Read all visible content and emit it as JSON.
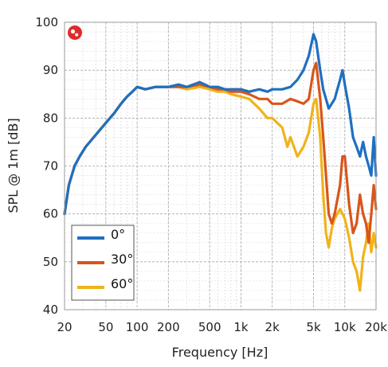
{
  "chart_data": {
    "type": "line",
    "title": "",
    "xlabel": "Frequency [Hz]",
    "ylabel": "SPL @ 1m [dB]",
    "x_scale": "log",
    "xlim": [
      20,
      20000
    ],
    "ylim": [
      40,
      100
    ],
    "x_ticks": [
      20,
      50,
      100,
      200,
      500,
      1000,
      2000,
      5000,
      10000,
      20000
    ],
    "x_tick_labels": [
      "20",
      "50",
      "100",
      "200",
      "500",
      "1k",
      "2k",
      "5k",
      "10k",
      "20k"
    ],
    "y_ticks": [
      40,
      50,
      60,
      70,
      80,
      90,
      100
    ],
    "y_tick_labels": [
      "40",
      "50",
      "60",
      "70",
      "80",
      "90",
      "100"
    ],
    "grid": true,
    "legend_position": "bottom-left",
    "series": [
      {
        "name": "0°",
        "color": "#1f6fc0",
        "points": [
          [
            20,
            60
          ],
          [
            22,
            66
          ],
          [
            25,
            70
          ],
          [
            28,
            72
          ],
          [
            32,
            74
          ],
          [
            40,
            76.5
          ],
          [
            50,
            79
          ],
          [
            60,
            81
          ],
          [
            70,
            83
          ],
          [
            80,
            84.5
          ],
          [
            90,
            85.5
          ],
          [
            100,
            86.5
          ],
          [
            120,
            86
          ],
          [
            150,
            86.5
          ],
          [
            200,
            86.5
          ],
          [
            250,
            87
          ],
          [
            300,
            86.5
          ],
          [
            400,
            87.5
          ],
          [
            450,
            87
          ],
          [
            500,
            86.5
          ],
          [
            600,
            86.5
          ],
          [
            700,
            86
          ],
          [
            800,
            86
          ],
          [
            1000,
            86
          ],
          [
            1200,
            85.5
          ],
          [
            1500,
            86
          ],
          [
            1800,
            85.5
          ],
          [
            2000,
            86
          ],
          [
            2500,
            86
          ],
          [
            3000,
            86.5
          ],
          [
            3500,
            88
          ],
          [
            4000,
            90
          ],
          [
            4500,
            93
          ],
          [
            5000,
            97.5
          ],
          [
            5300,
            96
          ],
          [
            5800,
            90
          ],
          [
            6200,
            86
          ],
          [
            7000,
            82
          ],
          [
            8000,
            84
          ],
          [
            9000,
            88
          ],
          [
            9500,
            90
          ],
          [
            10000,
            87
          ],
          [
            11000,
            82
          ],
          [
            12000,
            76
          ],
          [
            13000,
            74
          ],
          [
            14000,
            72
          ],
          [
            15000,
            75
          ],
          [
            16000,
            72
          ],
          [
            17000,
            70
          ],
          [
            18000,
            68
          ],
          [
            19000,
            76
          ],
          [
            20000,
            68
          ]
        ]
      },
      {
        "name": "30°",
        "color": "#d8561a",
        "points": [
          [
            20,
            60
          ],
          [
            22,
            66
          ],
          [
            25,
            70
          ],
          [
            28,
            72
          ],
          [
            32,
            74
          ],
          [
            40,
            76.5
          ],
          [
            50,
            79
          ],
          [
            60,
            81
          ],
          [
            70,
            83
          ],
          [
            80,
            84.5
          ],
          [
            90,
            85.5
          ],
          [
            100,
            86.5
          ],
          [
            120,
            86
          ],
          [
            150,
            86.5
          ],
          [
            200,
            86.5
          ],
          [
            250,
            86.5
          ],
          [
            300,
            86.5
          ],
          [
            400,
            87
          ],
          [
            500,
            86.5
          ],
          [
            600,
            86
          ],
          [
            700,
            86
          ],
          [
            800,
            85.5
          ],
          [
            1000,
            85.5
          ],
          [
            1200,
            85
          ],
          [
            1500,
            84
          ],
          [
            1800,
            84
          ],
          [
            2000,
            83
          ],
          [
            2500,
            83
          ],
          [
            3000,
            84
          ],
          [
            3500,
            83.5
          ],
          [
            4000,
            83
          ],
          [
            4500,
            84
          ],
          [
            5000,
            90
          ],
          [
            5300,
            91.5
          ],
          [
            5800,
            84
          ],
          [
            6200,
            76
          ],
          [
            6600,
            68
          ],
          [
            7000,
            60
          ],
          [
            7500,
            58
          ],
          [
            8000,
            60
          ],
          [
            9000,
            66
          ],
          [
            9500,
            72
          ],
          [
            10000,
            72
          ],
          [
            11000,
            62
          ],
          [
            12000,
            56
          ],
          [
            13000,
            58
          ],
          [
            14000,
            64
          ],
          [
            15000,
            60
          ],
          [
            16000,
            58
          ],
          [
            17000,
            54
          ],
          [
            18000,
            60
          ],
          [
            19000,
            66
          ],
          [
            20000,
            61
          ]
        ]
      },
      {
        "name": "60°",
        "color": "#f0b31a",
        "points": [
          [
            20,
            60
          ],
          [
            22,
            66
          ],
          [
            25,
            70
          ],
          [
            28,
            72
          ],
          [
            32,
            74
          ],
          [
            40,
            76.5
          ],
          [
            50,
            79
          ],
          [
            60,
            81
          ],
          [
            70,
            83
          ],
          [
            80,
            84.5
          ],
          [
            90,
            85.5
          ],
          [
            100,
            86.5
          ],
          [
            120,
            86
          ],
          [
            150,
            86.5
          ],
          [
            200,
            86.5
          ],
          [
            250,
            86.5
          ],
          [
            300,
            86
          ],
          [
            400,
            86.5
          ],
          [
            500,
            86
          ],
          [
            600,
            85.5
          ],
          [
            700,
            85.5
          ],
          [
            800,
            85
          ],
          [
            1000,
            84.5
          ],
          [
            1200,
            84
          ],
          [
            1500,
            82
          ],
          [
            1800,
            80
          ],
          [
            2000,
            80
          ],
          [
            2500,
            78
          ],
          [
            2800,
            74
          ],
          [
            3000,
            76
          ],
          [
            3500,
            72
          ],
          [
            4000,
            74
          ],
          [
            4500,
            77
          ],
          [
            5000,
            83
          ],
          [
            5300,
            84
          ],
          [
            5800,
            76
          ],
          [
            6200,
            64
          ],
          [
            6600,
            56
          ],
          [
            7000,
            53
          ],
          [
            7500,
            57
          ],
          [
            8000,
            59
          ],
          [
            9000,
            61
          ],
          [
            10000,
            59
          ],
          [
            11000,
            55
          ],
          [
            12000,
            50
          ],
          [
            13000,
            48
          ],
          [
            14000,
            44
          ],
          [
            15000,
            51
          ],
          [
            16000,
            54
          ],
          [
            17000,
            58
          ],
          [
            18000,
            52
          ],
          [
            19000,
            56
          ],
          [
            20000,
            53
          ]
        ]
      }
    ]
  }
}
